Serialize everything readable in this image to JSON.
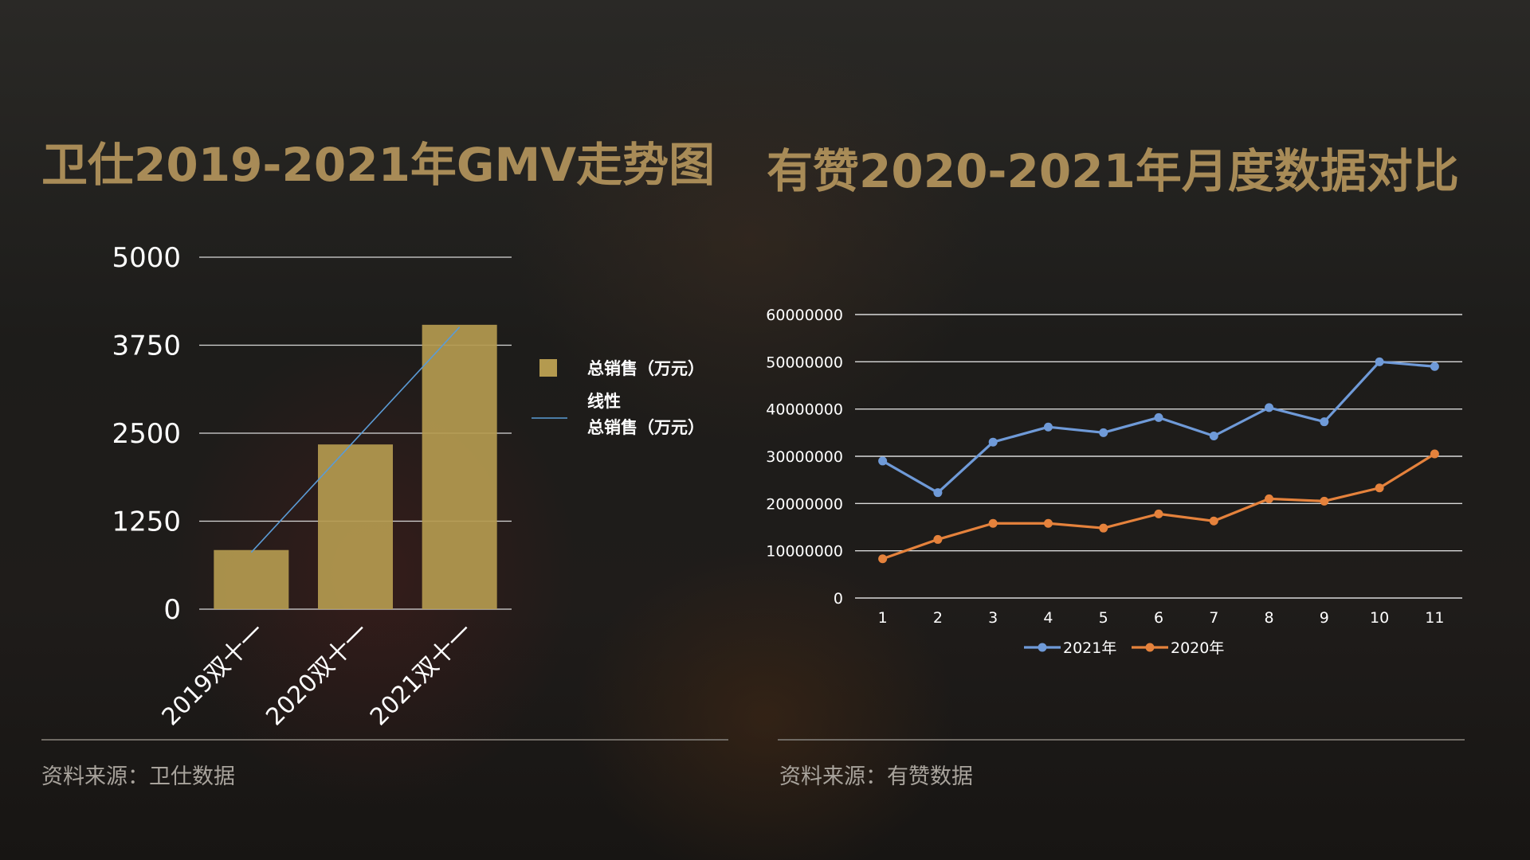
{
  "titles": {
    "left": "卫仕2019-2021年GMV走势图",
    "right": "有赞2020-2021年月度数据对比"
  },
  "sources": {
    "left": "资料来源：卫仕数据",
    "right": "资料来源：有赞数据"
  },
  "colors": {
    "title": "#a88b57",
    "bar": "#b49a4f",
    "trend_line": "#5b9bd5",
    "series_2021": "#6f9ad8",
    "series_2020": "#e5823c",
    "grid": "#d9d9d9"
  },
  "chart_data": [
    {
      "type": "bar",
      "title": "",
      "categories": [
        "2019双十一",
        "2020双十一",
        "2021双十一"
      ],
      "series": [
        {
          "name": "总销售（万元）",
          "values": [
            840,
            2340,
            4040
          ]
        }
      ],
      "trendline": {
        "name_line1": "线性",
        "name_line2": "总销售（万元）",
        "type": "linear"
      },
      "yticks": [
        "0",
        "1250",
        "2500",
        "3750",
        "5000"
      ],
      "ylim": [
        0,
        5000
      ],
      "grid": true,
      "legend": "right"
    },
    {
      "type": "line",
      "title": "",
      "x": [
        "1",
        "2",
        "3",
        "4",
        "5",
        "6",
        "7",
        "8",
        "9",
        "10",
        "11"
      ],
      "series": [
        {
          "name": "2021年",
          "values": [
            29000000,
            22300000,
            33000000,
            36200000,
            35000000,
            38200000,
            34300000,
            40300000,
            37300000,
            50000000,
            49000000
          ]
        },
        {
          "name": "2020年",
          "values": [
            8300000,
            12400000,
            15800000,
            15800000,
            14800000,
            17800000,
            16300000,
            21000000,
            20500000,
            23300000,
            30500000
          ]
        }
      ],
      "yticks": [
        "0",
        "10000000",
        "20000000",
        "30000000",
        "40000000",
        "50000000",
        "60000000"
      ],
      "ylim": [
        0,
        60000000
      ],
      "grid": true,
      "legend": "bottom"
    }
  ]
}
